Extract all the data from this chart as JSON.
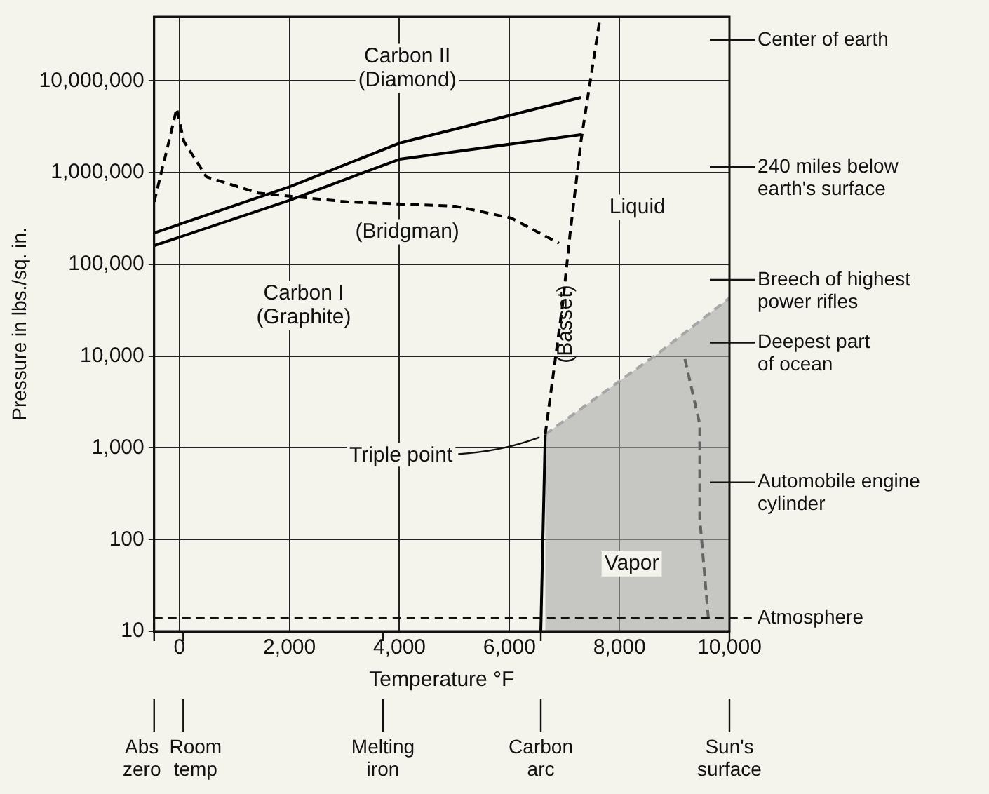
{
  "chart_data": {
    "type": "line",
    "xlabel": "Temperature °F",
    "ylabel": "Pressure in lbs./sq. in.",
    "xlim": [
      -460,
      10000
    ],
    "ylim": [
      10,
      50000000
    ],
    "xticks": [
      {
        "value": 0,
        "label": "0"
      },
      {
        "value": 2000,
        "label": "2,000"
      },
      {
        "value": 4000,
        "label": "4,000"
      },
      {
        "value": 6000,
        "label": "6,000"
      },
      {
        "value": 8000,
        "label": "8,000"
      },
      {
        "value": 10000,
        "label": "10,000"
      }
    ],
    "yticks": [
      {
        "value": 10,
        "label": "10"
      },
      {
        "value": 100,
        "label": "100"
      },
      {
        "value": 1000,
        "label": "1,000"
      },
      {
        "value": 10000,
        "label": "10,000"
      },
      {
        "value": 100000,
        "label": "100,000"
      },
      {
        "value": 1000000,
        "label": "1,000,000"
      },
      {
        "value": 10000000,
        "label": "10,000,000"
      }
    ],
    "log": "y",
    "grid": true,
    "legend": false,
    "series": [
      {
        "color": "#000000",
        "x": [
          -460,
          2000,
          4000,
          7300
        ],
        "values": [
          220000,
          700000,
          2100000,
          6600000
        ]
      },
      {
        "color": "#000000",
        "x": [
          -460,
          2000,
          4000,
          7300
        ],
        "values": [
          160000,
          500000,
          1400000,
          2600000
        ]
      },
      {
        "color": "#000000",
        "line_style": "dashed",
        "x": [
          -460,
          -190,
          -50,
          80,
          490,
          1430,
          3050,
          5030,
          6030,
          6900
        ],
        "values": [
          480000,
          2200000,
          5000000,
          2200000,
          900000,
          600000,
          480000,
          430000,
          320000,
          170000
        ]
      },
      {
        "color": "#000000",
        "line_style": "dashed",
        "x": [
          6650,
          6970,
          7100,
          7300,
          7650
        ],
        "values": [
          1400,
          38000,
          210000,
          2200000,
          50000000
        ]
      },
      {
        "color": "#000000",
        "x": [
          6570,
          6650
        ],
        "values": [
          10,
          1400
        ]
      },
      {
        "type": "area",
        "color": "#a6a6a6",
        "line_style": "dashed",
        "x": [
          6650,
          8730,
          10000
        ],
        "values": [
          1400,
          11000,
          43000
        ]
      },
      {
        "color": "#000000",
        "line_style": "dashed",
        "x": [
          9190,
          9460,
          9460,
          9620
        ],
        "values": [
          9300,
          1800,
          170,
          13
        ]
      }
    ],
    "ref_lines": [
      {
        "axis": "y",
        "value": 14,
        "label": "Atmosphere",
        "line_style": "dashed"
      },
      {
        "axis": "y",
        "value": 28000000,
        "label": "Center of earth"
      },
      {
        "axis": "y",
        "value": 1150000,
        "label": "240 miles below\nearth's surface"
      },
      {
        "axis": "y",
        "value": 68000,
        "label": "Breech of highest\npower rifles"
      },
      {
        "axis": "y",
        "value": 14000,
        "label": "Deepest part\nof ocean"
      },
      {
        "axis": "y",
        "value": 420,
        "label": "Automobile engine\ncylinder"
      },
      {
        "axis": "x",
        "value": -460,
        "label": "Abs\nzero"
      },
      {
        "axis": "x",
        "value": 70,
        "label": "Room\ntemp"
      },
      {
        "axis": "x",
        "value": 3700,
        "label": "Melting\niron"
      },
      {
        "axis": "x",
        "value": 6570,
        "label": "Carbon\narc"
      },
      {
        "axis": "x",
        "value": 10000,
        "label": "Sun's\nsurface"
      }
    ],
    "annotations": [
      "Carbon II\n(Diamond)",
      "(Bridgman)",
      "Carbon I\n(Graphite)",
      "Liquid",
      "(Basset)",
      "Vapor",
      {
        "text": "Triple point",
        "x": 6650,
        "y": 1400
      }
    ]
  }
}
